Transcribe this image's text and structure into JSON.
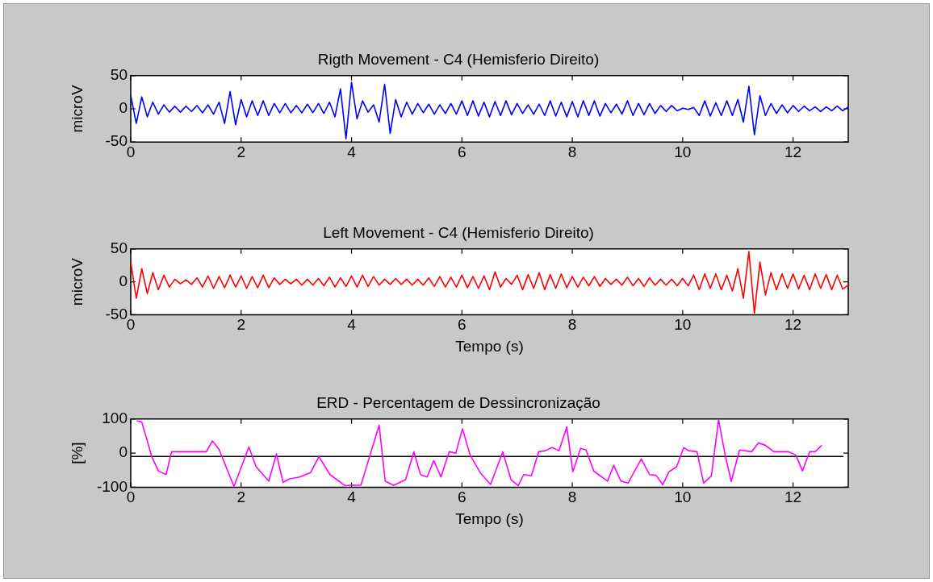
{
  "chart_data": [
    {
      "type": "line",
      "title": "Rigth Movement - C4 (Hemisferio Direito)",
      "ylabel": "microV",
      "xlim": [
        0,
        13
      ],
      "xticks": [
        0,
        2,
        4,
        6,
        8,
        10,
        12
      ],
      "ylim": [
        -50,
        50
      ],
      "yticks": [
        -50,
        0,
        50
      ],
      "x": [
        0,
        0.1,
        0.2,
        0.3,
        0.4,
        0.5,
        0.6,
        0.7,
        0.8,
        0.9,
        1,
        1.1,
        1.2,
        1.3,
        1.4,
        1.5,
        1.6,
        1.7,
        1.8,
        1.9,
        2,
        2.1,
        2.2,
        2.3,
        2.4,
        2.5,
        2.6,
        2.7,
        2.8,
        2.9,
        3,
        3.1,
        3.2,
        3.3,
        3.4,
        3.5,
        3.6,
        3.7,
        3.8,
        3.9,
        4,
        4.1,
        4.2,
        4.3,
        4.4,
        4.5,
        4.6,
        4.7,
        4.8,
        4.9,
        5,
        5.1,
        5.2,
        5.3,
        5.4,
        5.5,
        5.6,
        5.7,
        5.8,
        5.9,
        6,
        6.1,
        6.2,
        6.3,
        6.4,
        6.5,
        6.6,
        6.7,
        6.8,
        6.9,
        7,
        7.1,
        7.2,
        7.3,
        7.4,
        7.5,
        7.6,
        7.7,
        7.8,
        7.9,
        8,
        8.1,
        8.2,
        8.3,
        8.4,
        8.5,
        8.6,
        8.7,
        8.8,
        8.9,
        9,
        9.1,
        9.2,
        9.3,
        9.4,
        9.5,
        9.6,
        9.7,
        9.8,
        9.9,
        10,
        10.1,
        10.2,
        10.3,
        10.4,
        10.5,
        10.6,
        10.7,
        10.8,
        10.9,
        11,
        11.1,
        11.2,
        11.3,
        11.4,
        11.5,
        11.6,
        11.7,
        11.8,
        11.9,
        12,
        12.1,
        12.2,
        12.3,
        12.4,
        12.5,
        12.6,
        12.7,
        12.8,
        12.9,
        13
      ],
      "series": [
        {
          "color": "#0000ff",
          "values": [
            20,
            -22,
            18,
            -12,
            10,
            -8,
            6,
            -5,
            4,
            -5,
            4,
            -4,
            5,
            -6,
            6,
            -8,
            10,
            -22,
            26,
            -24,
            14,
            -12,
            12,
            -10,
            12,
            -10,
            8,
            -6,
            8,
            -6,
            5,
            -6,
            7,
            -6,
            8,
            -7,
            10,
            -12,
            30,
            -45,
            40,
            -15,
            12,
            -5,
            6,
            -20,
            37,
            -37,
            14,
            -12,
            10,
            -8,
            8,
            -6,
            7,
            -8,
            6,
            -7,
            8,
            -8,
            12,
            -10,
            12,
            -11,
            10,
            -12,
            11,
            -10,
            12,
            -9,
            8,
            -7,
            6,
            -8,
            7,
            -10,
            12,
            -11,
            10,
            -12,
            11,
            -12,
            12,
            -10,
            12,
            -11,
            8,
            -6,
            7,
            -8,
            12,
            -10,
            8,
            -9,
            8,
            -7,
            5,
            -4,
            5,
            -3,
            1,
            -1,
            2,
            -10,
            12,
            -11,
            9,
            -10,
            12,
            -10,
            14,
            -20,
            34,
            -39,
            20,
            -10,
            8,
            -7,
            6,
            -6,
            5,
            -4,
            4,
            -3,
            3,
            -4,
            3,
            -3,
            4,
            -3,
            3
          ]
        }
      ]
    },
    {
      "type": "line",
      "title": "Left Movement - C4 (Hemisferio Direito)",
      "xlabel": "Tempo (s)",
      "ylabel": "microV",
      "xlim": [
        0,
        13
      ],
      "xticks": [
        0,
        2,
        4,
        6,
        8,
        10,
        12
      ],
      "ylim": [
        -50,
        50
      ],
      "yticks": [
        -50,
        0,
        50
      ],
      "x": [
        0,
        0.1,
        0.2,
        0.3,
        0.4,
        0.5,
        0.6,
        0.7,
        0.8,
        0.9,
        1,
        1.1,
        1.2,
        1.3,
        1.4,
        1.5,
        1.6,
        1.7,
        1.8,
        1.9,
        2,
        2.1,
        2.2,
        2.3,
        2.4,
        2.5,
        2.6,
        2.7,
        2.8,
        2.9,
        3,
        3.1,
        3.2,
        3.3,
        3.4,
        3.5,
        3.6,
        3.7,
        3.8,
        3.9,
        4,
        4.1,
        4.2,
        4.3,
        4.4,
        4.5,
        4.6,
        4.7,
        4.8,
        4.9,
        5,
        5.1,
        5.2,
        5.3,
        5.4,
        5.5,
        5.6,
        5.7,
        5.8,
        5.9,
        6,
        6.1,
        6.2,
        6.3,
        6.4,
        6.5,
        6.6,
        6.7,
        6.8,
        6.9,
        7,
        7.1,
        7.2,
        7.3,
        7.4,
        7.5,
        7.6,
        7.7,
        7.8,
        7.9,
        8,
        8.1,
        8.2,
        8.3,
        8.4,
        8.5,
        8.6,
        8.7,
        8.8,
        8.9,
        9,
        9.1,
        9.2,
        9.3,
        9.4,
        9.5,
        9.6,
        9.7,
        9.8,
        9.9,
        10,
        10.1,
        10.2,
        10.3,
        10.4,
        10.5,
        10.6,
        10.7,
        10.8,
        10.9,
        11,
        11.1,
        11.2,
        11.3,
        11.4,
        11.5,
        11.6,
        11.7,
        11.8,
        11.9,
        12,
        12.1,
        12.2,
        12.3,
        12.4,
        12.5,
        12.6,
        12.7,
        12.8,
        12.9,
        13
      ],
      "series": [
        {
          "color": "#ff0000",
          "values": [
            30,
            -25,
            20,
            -18,
            14,
            -12,
            10,
            -8,
            4,
            -3,
            3,
            -4,
            6,
            -8,
            9,
            -10,
            8,
            -9,
            10,
            -8,
            9,
            -10,
            8,
            -9,
            10,
            -9,
            6,
            -4,
            4,
            -3,
            4,
            -5,
            4,
            -5,
            5,
            -6,
            7,
            -8,
            6,
            -7,
            9,
            -8,
            10,
            -7,
            8,
            -5,
            4,
            -4,
            5,
            -4,
            4,
            -5,
            4,
            -5,
            6,
            -7,
            8,
            -8,
            7,
            -8,
            10,
            -9,
            8,
            -10,
            9,
            -12,
            15,
            -8,
            5,
            -4,
            10,
            -12,
            11,
            -10,
            14,
            -12,
            11,
            -10,
            12,
            -9,
            8,
            -8,
            7,
            -6,
            8,
            -7,
            5,
            -4,
            4,
            -5,
            7,
            -6,
            5,
            -7,
            6,
            -5,
            4,
            -5,
            4,
            -6,
            5,
            -6,
            10,
            -12,
            12,
            -10,
            12,
            -12,
            10,
            -14,
            20,
            -25,
            46,
            -48,
            30,
            -20,
            14,
            -12,
            12,
            -10,
            12,
            -11,
            10,
            -12,
            12,
            -10,
            11,
            -12,
            10,
            -11,
            -5
          ]
        }
      ]
    },
    {
      "type": "line",
      "title": "ERD - Percentagem de Dessincronização",
      "xlabel": "Tempo (s)",
      "ylabel": "[%]",
      "xlim": [
        0,
        13
      ],
      "xticks": [
        0,
        2,
        4,
        6,
        8,
        10,
        12
      ],
      "ylim": [
        -100,
        100
      ],
      "yticks": [
        -100,
        0,
        100
      ],
      "ref_lines": [
        {
          "axis": "y",
          "value": -10,
          "color": "#000000"
        }
      ],
      "x": [
        0.11,
        0.2,
        0.38,
        0.5,
        0.64,
        0.74,
        1.37,
        1.48,
        1.6,
        1.87,
        2.14,
        2.27,
        2.5,
        2.64,
        2.76,
        2.87,
        3.06,
        3.26,
        3.41,
        3.61,
        3.88,
        4.17,
        4.5,
        4.61,
        4.76,
        4.98,
        5.13,
        5.25,
        5.37,
        5.49,
        5.62,
        5.77,
        5.89,
        6.01,
        6.15,
        6.33,
        6.52,
        6.74,
        6.89,
        7.02,
        7.12,
        7.26,
        7.39,
        7.51,
        7.63,
        7.76,
        7.9,
        8.01,
        8.15,
        8.25,
        8.39,
        8.64,
        8.75,
        8.88,
        9.01,
        9.25,
        9.4,
        9.52,
        9.64,
        9.75,
        9.89,
        10.02,
        10.11,
        10.26,
        10.38,
        10.52,
        10.65,
        10.77,
        10.88,
        11.03,
        11.25,
        11.37,
        11.5,
        11.65,
        11.92,
        12.05,
        12.17,
        12.3,
        12.4,
        12.52
      ],
      "series": [
        {
          "color": "#ff00ff",
          "values": [
            95,
            91,
            -10,
            -52,
            -63,
            4,
            4,
            36,
            11,
            -98,
            18,
            -40,
            -82,
            -2,
            -86,
            -76,
            -70,
            -57,
            -10,
            -63,
            -95,
            -94,
            82,
            -82,
            -95,
            -78,
            4,
            -63,
            -70,
            -22,
            -70,
            4,
            0,
            71,
            -6,
            -57,
            -92,
            4,
            -78,
            -95,
            -63,
            -66,
            4,
            7,
            16,
            7,
            77,
            -55,
            14,
            9,
            -53,
            -82,
            -36,
            -82,
            -88,
            -17,
            -63,
            -65,
            -93,
            -55,
            -40,
            16,
            7,
            4,
            -88,
            -67,
            98,
            -6,
            -83,
            9,
            4,
            30,
            23,
            4,
            4,
            -6,
            -52,
            4,
            4,
            23
          ]
        }
      ]
    }
  ]
}
